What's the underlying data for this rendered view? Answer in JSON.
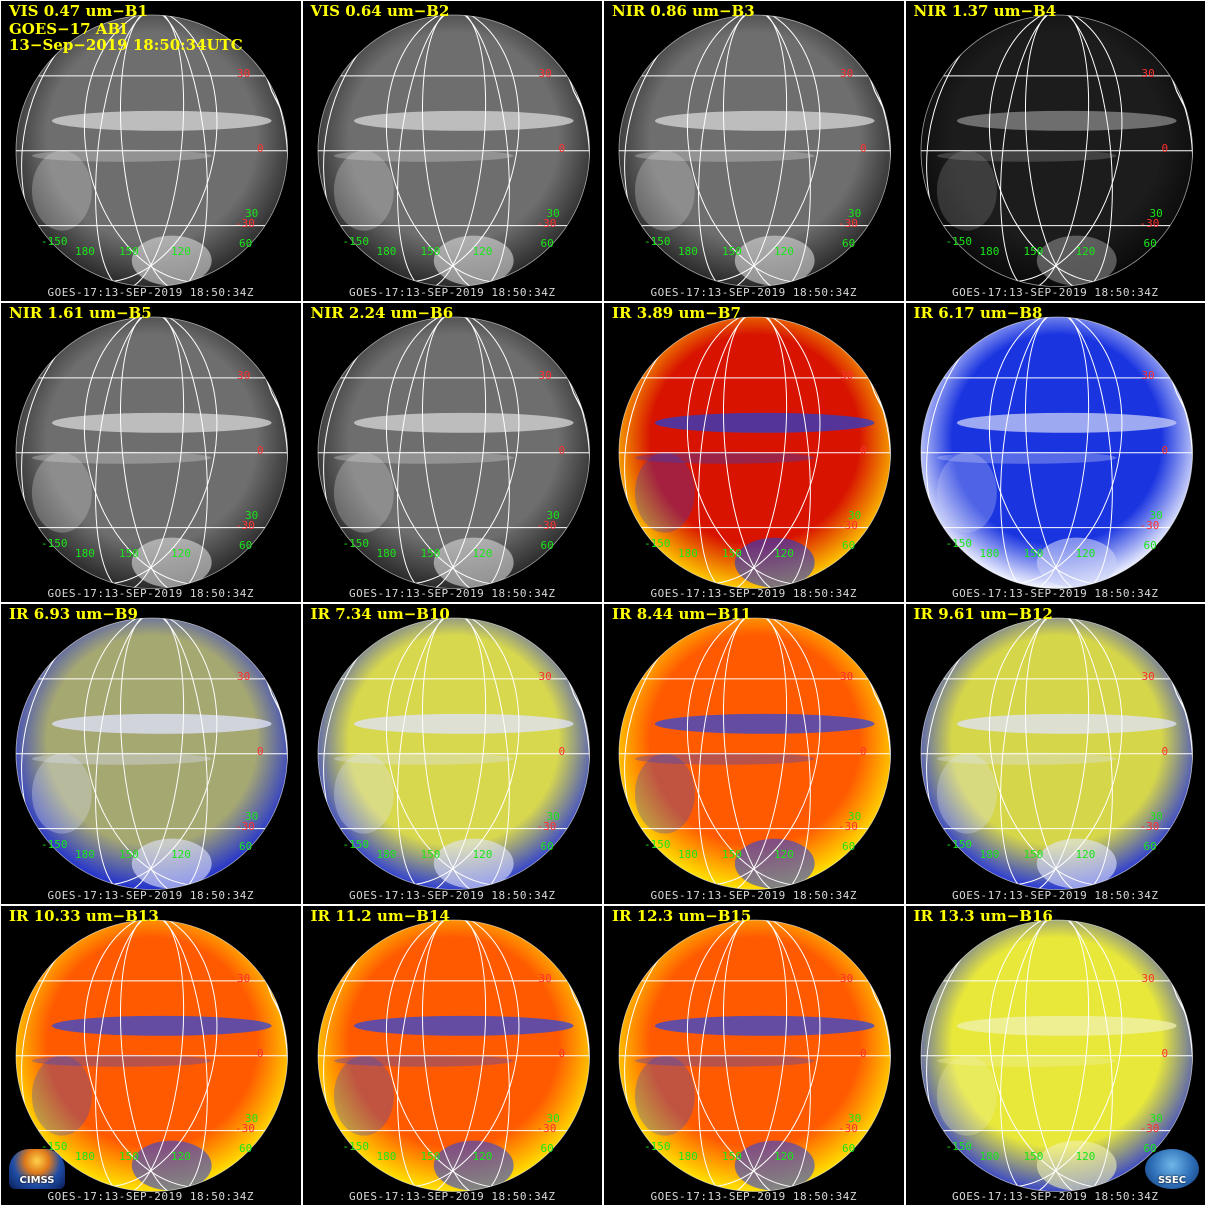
{
  "header": {
    "line2": "GOES−17 ABI",
    "line3": "13−Sep−2019 18:50:34UTC"
  },
  "stamp": "GOES-17:13-SEP-2019  18:50:34Z",
  "grid_labels": {
    "lat_n30": "30",
    "lat_eq": "0",
    "lat_s30": "-30",
    "lon_a": "30",
    "lon_b": "-150",
    "lon_c": "180",
    "lon_d": "150",
    "lon_e": "120",
    "lon_f": "60"
  },
  "logos": {
    "left": "CIMSS",
    "right": "SSEC"
  },
  "panels": [
    {
      "title": "VIS 0.47 um−B1",
      "palette": "gray"
    },
    {
      "title": "VIS 0.64 um−B2",
      "palette": "gray"
    },
    {
      "title": "NIR 0.86 um−B3",
      "palette": "gray"
    },
    {
      "title": "NIR 1.37 um−B4",
      "palette": "dark"
    },
    {
      "title": "NIR 1.61 um−B5",
      "palette": "gray"
    },
    {
      "title": "NIR 2.24 um−B6",
      "palette": "gray"
    },
    {
      "title": "IR 3.89 um−B7",
      "palette": "red"
    },
    {
      "title": "IR 6.17 um−B8",
      "palette": "wv_white"
    },
    {
      "title": "IR 6.93 um−B9",
      "palette": "wv_blue"
    },
    {
      "title": "IR 7.34 um−B10",
      "palette": "wv_yellow"
    },
    {
      "title": "IR 8.44 um−B11",
      "palette": "orange"
    },
    {
      "title": "IR 9.61 um−B12",
      "palette": "yellow_blue"
    },
    {
      "title": "IR 10.33 um−B13",
      "palette": "orange"
    },
    {
      "title": "IR 11.2 um−B14",
      "palette": "orange"
    },
    {
      "title": "IR 12.3 um−B15",
      "palette": "orange"
    },
    {
      "title": "IR 13.3 um−B16",
      "palette": "yellow"
    }
  ],
  "palettes": {
    "gray": {
      "center": "#6e6e6e",
      "edge": "#2a2a2a",
      "band": "#d8d8d8"
    },
    "dark": {
      "center": "#1c1c1c",
      "edge": "#0a0a0a",
      "band": "#8a8a8a"
    },
    "red": {
      "center": "#d81400",
      "edge": "#ffcc00",
      "band": "#2a3fcc"
    },
    "wv_white": {
      "center": "#1a34e0",
      "edge": "#f4f6ff",
      "band": "#c9d0f6"
    },
    "wv_blue": {
      "center": "#a6a872",
      "edge": "#2030d0",
      "band": "#dfe3ff"
    },
    "wv_yellow": {
      "center": "#d8d84e",
      "edge": "#3040d0",
      "band": "#dfe3ff"
    },
    "orange": {
      "center": "#ff5a00",
      "edge": "#ffe400",
      "band": "#3048d8"
    },
    "yellow_blue": {
      "center": "#d6d64a",
      "edge": "#2a3ad6",
      "band": "#dfe3ff"
    },
    "yellow": {
      "center": "#e8e83a",
      "edge": "#3a48c8",
      "band": "#f0f0b0"
    }
  }
}
